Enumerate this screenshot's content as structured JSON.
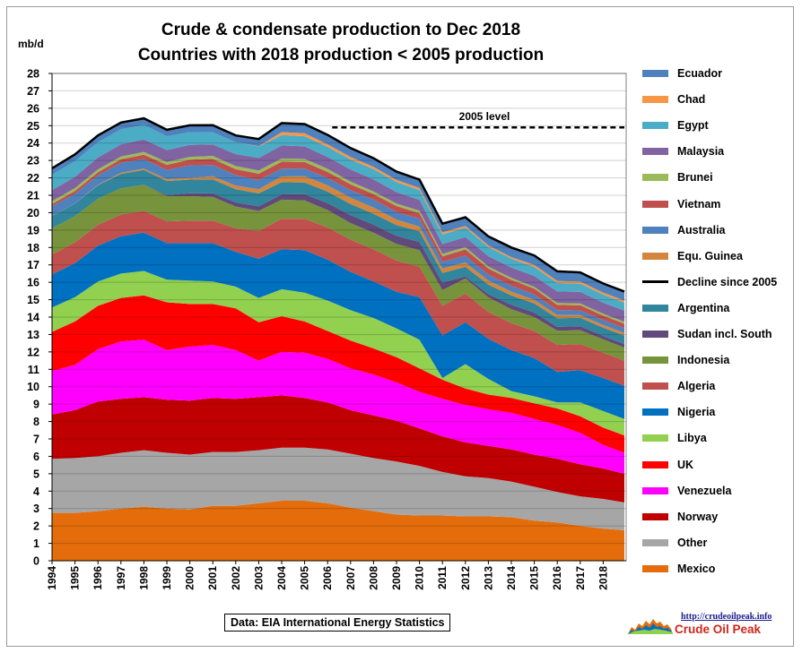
{
  "title_line1": "Crude & condensate production to Dec 2018",
  "title_line2": "Countries with 2018 production < 2005  production",
  "unit_label": "mb/d",
  "source_text": "Data: EIA International Energy Statistics",
  "brand": {
    "url": "http://crudeoilpeak.info",
    "name": "Crude Oil Peak"
  },
  "chart_data": {
    "type": "area",
    "stacked": true,
    "ylabel": "mb/d",
    "xlabel": "",
    "ylim": [
      0,
      28
    ],
    "yticks": [
      0,
      1,
      2,
      3,
      4,
      5,
      6,
      7,
      8,
      9,
      10,
      11,
      12,
      13,
      14,
      15,
      16,
      17,
      18,
      19,
      20,
      21,
      22,
      23,
      24,
      25,
      26,
      27,
      28
    ],
    "xlim": [
      1994,
      2019
    ],
    "x": [
      1994,
      1995,
      1996,
      1997,
      1998,
      1999,
      2000,
      2001,
      2002,
      2003,
      2004,
      2005,
      2006,
      2007,
      2008,
      2009,
      2010,
      2011,
      2012,
      2013,
      2014,
      2015,
      2016,
      2017,
      2018,
      2018.92
    ],
    "xtick_labels": [
      "1994",
      "1995",
      "1996",
      "1997",
      "1998",
      "1999",
      "2000",
      "2001",
      "2002",
      "2003",
      "2004",
      "2005",
      "2006",
      "2007",
      "2008",
      "2009",
      "2010",
      "2011",
      "2012",
      "2013",
      "2014",
      "2015",
      "2016",
      "2017",
      "2018"
    ],
    "grid": true,
    "legend_position": "right",
    "annotation": "2005 level",
    "reference_level": 24.9,
    "reference_from": 2006.2,
    "series": [
      {
        "name": "Mexico",
        "color": "#e46c0a",
        "values": [
          2.75,
          2.75,
          2.85,
          3.0,
          3.1,
          3.0,
          2.95,
          3.15,
          3.15,
          3.3,
          3.45,
          3.45,
          3.3,
          3.05,
          2.85,
          2.65,
          2.6,
          2.6,
          2.55,
          2.55,
          2.5,
          2.3,
          2.2,
          2.0,
          1.85,
          1.75
        ]
      },
      {
        "name": "Other",
        "color": "#a6a6a6",
        "values": [
          3.1,
          3.15,
          3.15,
          3.2,
          3.25,
          3.2,
          3.15,
          3.1,
          3.1,
          3.05,
          3.05,
          3.05,
          3.1,
          3.1,
          3.05,
          3.05,
          2.85,
          2.5,
          2.3,
          2.2,
          2.05,
          1.95,
          1.75,
          1.7,
          1.7,
          1.6
        ]
      },
      {
        "name": "Norway",
        "color": "#c00000",
        "values": [
          2.55,
          2.75,
          3.15,
          3.1,
          3.05,
          3.05,
          3.1,
          3.1,
          3.05,
          3.05,
          3.0,
          2.85,
          2.7,
          2.5,
          2.45,
          2.35,
          2.15,
          2.05,
          1.95,
          1.85,
          1.85,
          1.85,
          1.9,
          1.85,
          1.75,
          1.65
        ]
      },
      {
        "name": "Venezuela",
        "color": "#ff00ff",
        "values": [
          2.5,
          2.6,
          3.0,
          3.3,
          3.3,
          2.85,
          3.1,
          3.05,
          2.8,
          2.1,
          2.5,
          2.6,
          2.5,
          2.4,
          2.35,
          2.2,
          2.1,
          2.15,
          2.15,
          2.1,
          2.1,
          2.05,
          1.95,
          1.8,
          1.35,
          1.2
        ]
      },
      {
        "name": "UK",
        "color": "#ff0000",
        "values": [
          2.25,
          2.5,
          2.5,
          2.5,
          2.55,
          2.75,
          2.45,
          2.35,
          2.4,
          2.2,
          2.05,
          1.8,
          1.6,
          1.6,
          1.5,
          1.45,
          1.35,
          1.1,
          0.95,
          0.85,
          0.85,
          0.9,
          0.95,
          0.95,
          1.0,
          1.0
        ]
      },
      {
        "name": "Libya",
        "color": "#92d050",
        "values": [
          1.4,
          1.4,
          1.4,
          1.4,
          1.4,
          1.3,
          1.35,
          1.3,
          1.25,
          1.4,
          1.55,
          1.65,
          1.75,
          1.75,
          1.75,
          1.65,
          1.65,
          0.1,
          1.4,
          0.9,
          0.4,
          0.4,
          0.35,
          0.8,
          0.95,
          0.95
        ]
      },
      {
        "name": "Nigeria",
        "color": "#0070c0",
        "values": [
          1.9,
          1.95,
          2.05,
          2.15,
          2.2,
          2.1,
          2.15,
          2.2,
          2.0,
          2.25,
          2.3,
          2.45,
          2.35,
          2.2,
          2.1,
          2.1,
          2.45,
          2.45,
          2.4,
          2.3,
          2.35,
          2.2,
          1.75,
          1.85,
          1.9,
          1.9
        ]
      },
      {
        "name": "Algeria",
        "color": "#c0504d",
        "values": [
          1.15,
          1.2,
          1.2,
          1.25,
          1.25,
          1.25,
          1.3,
          1.3,
          1.35,
          1.6,
          1.75,
          1.8,
          1.85,
          1.85,
          1.85,
          1.8,
          1.75,
          1.7,
          1.65,
          1.55,
          1.55,
          1.55,
          1.55,
          1.5,
          1.45,
          1.45
        ]
      },
      {
        "name": "Indonesia",
        "color": "#77933c",
        "values": [
          1.5,
          1.5,
          1.5,
          1.5,
          1.5,
          1.45,
          1.4,
          1.35,
          1.25,
          1.15,
          1.1,
          1.05,
          1.0,
          0.95,
          0.95,
          0.95,
          0.95,
          0.9,
          0.87,
          0.83,
          0.8,
          0.8,
          0.82,
          0.8,
          0.77,
          0.75
        ]
      },
      {
        "name": "Sudan incl. South",
        "color": "#604a7b",
        "values": [
          0.0,
          0.0,
          0.0,
          0.0,
          0.0,
          0.06,
          0.17,
          0.21,
          0.24,
          0.27,
          0.3,
          0.36,
          0.4,
          0.46,
          0.46,
          0.47,
          0.47,
          0.43,
          0.12,
          0.2,
          0.26,
          0.26,
          0.22,
          0.23,
          0.2,
          0.2
        ]
      },
      {
        "name": "Argentina",
        "color": "#31859c",
        "values": [
          0.7,
          0.72,
          0.78,
          0.83,
          0.85,
          0.81,
          0.78,
          0.8,
          0.76,
          0.74,
          0.7,
          0.67,
          0.66,
          0.64,
          0.63,
          0.62,
          0.61,
          0.56,
          0.55,
          0.54,
          0.53,
          0.53,
          0.5,
          0.48,
          0.48,
          0.49
        ]
      },
      {
        "name": "Equ. Guinea",
        "color": "#d2873d",
        "values": [
          0.01,
          0.01,
          0.02,
          0.06,
          0.08,
          0.1,
          0.1,
          0.18,
          0.2,
          0.24,
          0.33,
          0.36,
          0.36,
          0.36,
          0.35,
          0.31,
          0.27,
          0.25,
          0.25,
          0.23,
          0.22,
          0.2,
          0.18,
          0.16,
          0.15,
          0.15
        ]
      },
      {
        "name": "Australia",
        "color": "#4f81bd",
        "values": [
          0.55,
          0.55,
          0.55,
          0.58,
          0.55,
          0.53,
          0.72,
          0.65,
          0.61,
          0.53,
          0.45,
          0.45,
          0.42,
          0.44,
          0.47,
          0.44,
          0.46,
          0.38,
          0.39,
          0.34,
          0.34,
          0.31,
          0.28,
          0.26,
          0.28,
          0.28
        ]
      },
      {
        "name": "Vietnam",
        "color": "#c0504d",
        "values": [
          0.14,
          0.17,
          0.18,
          0.2,
          0.25,
          0.3,
          0.33,
          0.35,
          0.34,
          0.36,
          0.4,
          0.37,
          0.35,
          0.33,
          0.31,
          0.34,
          0.31,
          0.32,
          0.36,
          0.35,
          0.34,
          0.33,
          0.3,
          0.3,
          0.25,
          0.25
        ]
      },
      {
        "name": "Brunei",
        "color": "#9bbb59",
        "values": [
          0.16,
          0.16,
          0.16,
          0.16,
          0.16,
          0.16,
          0.16,
          0.17,
          0.18,
          0.18,
          0.18,
          0.18,
          0.18,
          0.16,
          0.15,
          0.14,
          0.14,
          0.14,
          0.13,
          0.12,
          0.11,
          0.11,
          0.11,
          0.11,
          0.11,
          0.11
        ]
      },
      {
        "name": "Malaysia",
        "color": "#8064a2",
        "values": [
          0.64,
          0.65,
          0.68,
          0.7,
          0.72,
          0.69,
          0.69,
          0.66,
          0.69,
          0.73,
          0.75,
          0.72,
          0.68,
          0.69,
          0.69,
          0.66,
          0.63,
          0.57,
          0.58,
          0.59,
          0.6,
          0.63,
          0.66,
          0.66,
          0.64,
          0.64
        ]
      },
      {
        "name": "Egypt",
        "color": "#4bacc6",
        "values": [
          0.88,
          0.9,
          0.88,
          0.86,
          0.83,
          0.79,
          0.73,
          0.7,
          0.68,
          0.65,
          0.6,
          0.58,
          0.58,
          0.58,
          0.59,
          0.58,
          0.56,
          0.55,
          0.54,
          0.53,
          0.51,
          0.51,
          0.49,
          0.47,
          0.46,
          0.46
        ]
      },
      {
        "name": "Chad",
        "color": "#f79646",
        "values": [
          0.0,
          0.0,
          0.0,
          0.0,
          0.0,
          0.0,
          0.0,
          0.0,
          0.0,
          0.02,
          0.17,
          0.17,
          0.15,
          0.14,
          0.13,
          0.12,
          0.12,
          0.12,
          0.1,
          0.09,
          0.09,
          0.12,
          0.12,
          0.12,
          0.12,
          0.12
        ]
      },
      {
        "name": "Ecuador",
        "color": "#4f81bd",
        "values": [
          0.37,
          0.39,
          0.39,
          0.39,
          0.38,
          0.37,
          0.39,
          0.41,
          0.39,
          0.41,
          0.52,
          0.53,
          0.54,
          0.51,
          0.5,
          0.48,
          0.48,
          0.5,
          0.5,
          0.52,
          0.55,
          0.54,
          0.55,
          0.53,
          0.52,
          0.52
        ]
      }
    ],
    "legend_line": {
      "name": "Decline since 2005",
      "color": "#000000"
    }
  }
}
